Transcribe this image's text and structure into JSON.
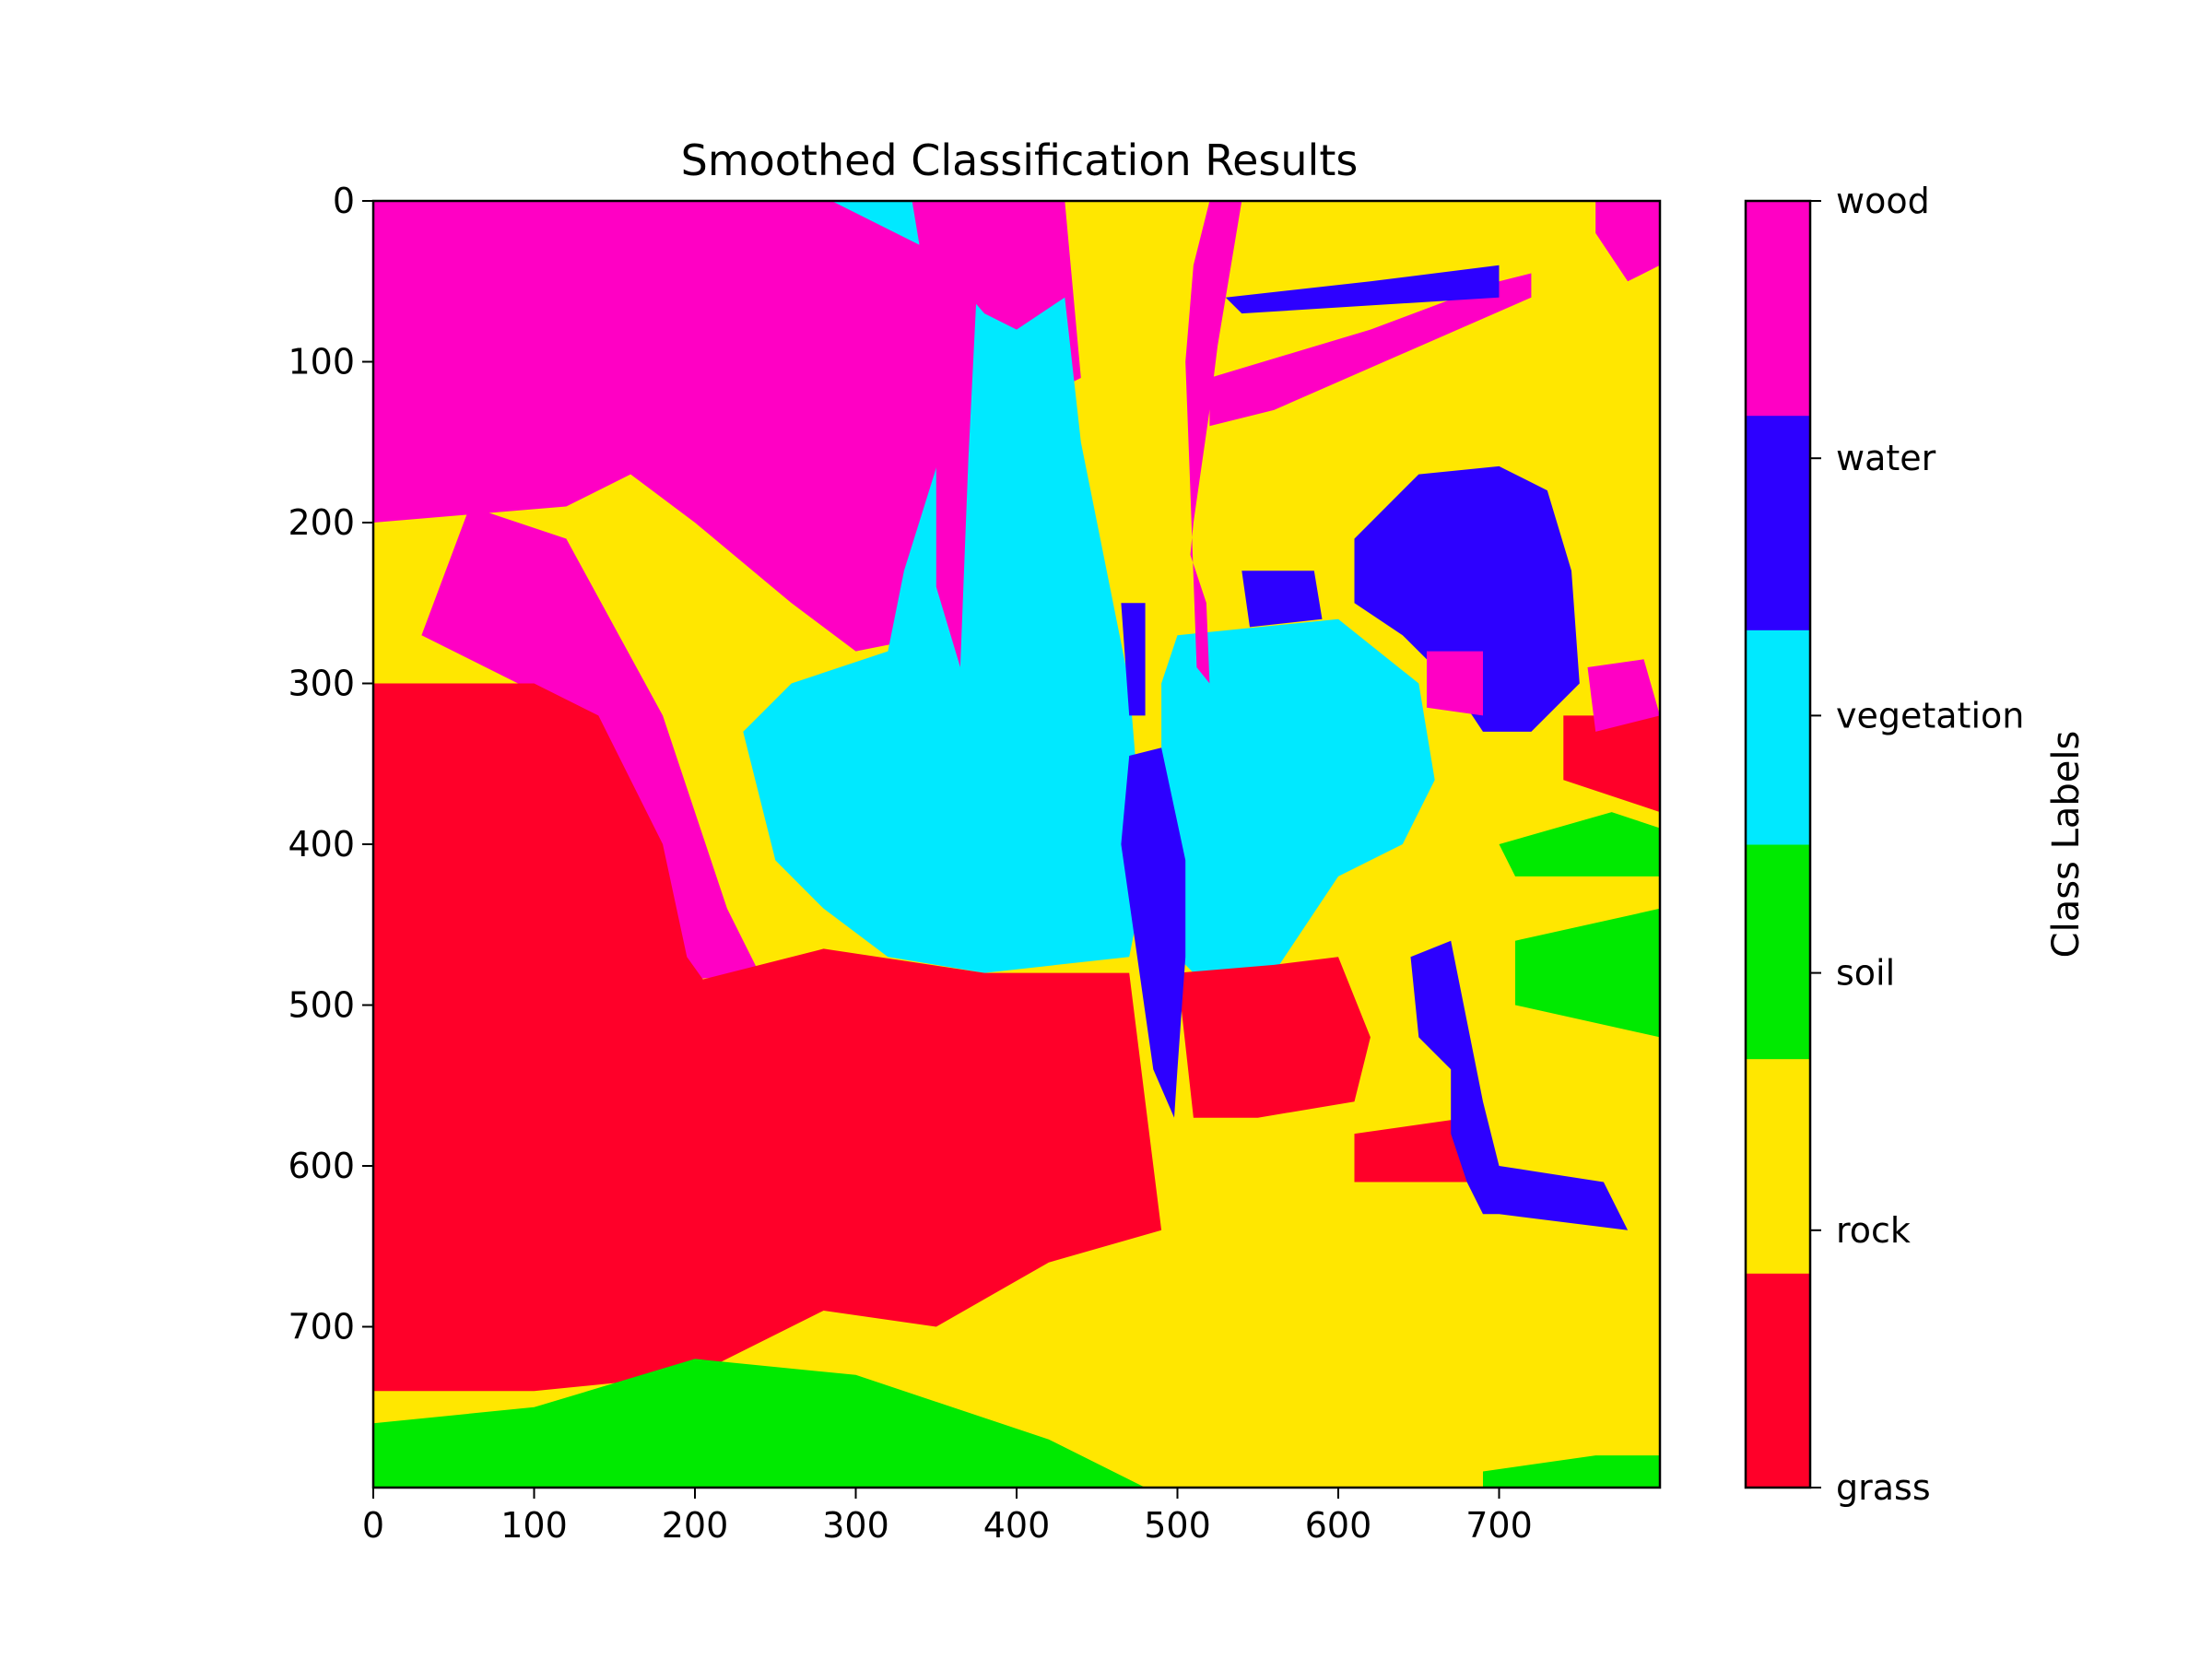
{
  "chart_data": {
    "type": "heatmap",
    "title": "Smoothed Classification Results",
    "xlabel": "",
    "ylabel": "",
    "xlim": [
      0,
      800
    ],
    "ylim": [
      800,
      0
    ],
    "x_ticks": [
      0,
      100,
      200,
      300,
      400,
      500,
      600,
      700
    ],
    "y_ticks": [
      0,
      100,
      200,
      300,
      400,
      500,
      600,
      700
    ],
    "grid": false,
    "colorbar": {
      "label": "Class Labels",
      "classes": [
        {
          "name": "grass",
          "color": "#ff0029"
        },
        {
          "name": "rock",
          "color": "#ffe700"
        },
        {
          "name": "soil",
          "color": "#00ea00"
        },
        {
          "name": "vegetation",
          "color": "#00e9ff"
        },
        {
          "name": "water",
          "color": "#2d00ff"
        },
        {
          "name": "wood",
          "color": "#ff00c4"
        }
      ]
    },
    "regions": [
      {
        "class": "wood",
        "points": [
          [
            0,
            0
          ],
          [
            430,
            0
          ],
          [
            440,
            110
          ],
          [
            400,
            130
          ],
          [
            380,
            200
          ],
          [
            350,
            270
          ],
          [
            300,
            280
          ],
          [
            260,
            250
          ],
          [
            200,
            200
          ],
          [
            160,
            170
          ],
          [
            120,
            190
          ],
          [
            0,
            200
          ]
        ]
      },
      {
        "class": "wood",
        "points": [
          [
            60,
            190
          ],
          [
            120,
            210
          ],
          [
            180,
            320
          ],
          [
            220,
            440
          ],
          [
            240,
            480
          ],
          [
            200,
            484
          ],
          [
            185,
            470
          ],
          [
            140,
            380
          ],
          [
            90,
            300
          ],
          [
            30,
            270
          ]
        ]
      },
      {
        "class": "vegetation",
        "points": [
          [
            285,
            0
          ],
          [
            350,
            0
          ],
          [
            360,
            60
          ],
          [
            355,
            150
          ],
          [
            330,
            230
          ],
          [
            320,
            280
          ],
          [
            260,
            300
          ],
          [
            230,
            330
          ],
          [
            250,
            410
          ],
          [
            280,
            440
          ],
          [
            320,
            470
          ],
          [
            380,
            480
          ],
          [
            470,
            470
          ],
          [
            480,
            420
          ],
          [
            470,
            300
          ],
          [
            450,
            200
          ],
          [
            440,
            150
          ],
          [
            430,
            60
          ],
          [
            400,
            80
          ],
          [
            380,
            70
          ],
          [
            345,
            30
          ]
        ]
      },
      {
        "class": "vegetation",
        "points": [
          [
            500,
            270
          ],
          [
            600,
            260
          ],
          [
            650,
            300
          ],
          [
            660,
            360
          ],
          [
            640,
            400
          ],
          [
            600,
            420
          ],
          [
            560,
            480
          ],
          [
            520,
            490
          ],
          [
            490,
            460
          ],
          [
            490,
            300
          ]
        ]
      },
      {
        "class": "wood",
        "points": [
          [
            335,
            0
          ],
          [
            380,
            0
          ],
          [
            375,
            60
          ],
          [
            370,
            160
          ],
          [
            365,
            290
          ],
          [
            350,
            240
          ],
          [
            350,
            150
          ],
          [
            345,
            60
          ]
        ]
      },
      {
        "class": "wood",
        "points": [
          [
            520,
            0
          ],
          [
            540,
            0
          ],
          [
            525,
            90
          ],
          [
            520,
            130
          ],
          [
            510,
            200
          ],
          [
            508,
            220
          ],
          [
            518,
            250
          ],
          [
            520,
            300
          ],
          [
            512,
            290
          ],
          [
            508,
            180
          ],
          [
            505,
            100
          ],
          [
            510,
            40
          ]
        ]
      },
      {
        "class": "wood",
        "points": [
          [
            520,
            110
          ],
          [
            620,
            80
          ],
          [
            700,
            50
          ],
          [
            720,
            45
          ],
          [
            720,
            60
          ],
          [
            640,
            95
          ],
          [
            560,
            130
          ],
          [
            520,
            140
          ]
        ]
      },
      {
        "class": "wood",
        "points": [
          [
            760,
            0
          ],
          [
            800,
            0
          ],
          [
            800,
            40
          ],
          [
            780,
            50
          ],
          [
            760,
            20
          ]
        ]
      },
      {
        "class": "grass",
        "points": [
          [
            0,
            300
          ],
          [
            100,
            300
          ],
          [
            140,
            320
          ],
          [
            180,
            400
          ],
          [
            195,
            470
          ],
          [
            205,
            484
          ],
          [
            280,
            465
          ],
          [
            380,
            480
          ],
          [
            470,
            480
          ],
          [
            480,
            560
          ],
          [
            490,
            640
          ],
          [
            420,
            660
          ],
          [
            350,
            700
          ],
          [
            280,
            690
          ],
          [
            200,
            730
          ],
          [
            100,
            740
          ],
          [
            0,
            740
          ]
        ]
      },
      {
        "class": "grass",
        "points": [
          [
            500,
            480
          ],
          [
            560,
            475
          ],
          [
            600,
            470
          ],
          [
            620,
            520
          ],
          [
            610,
            560
          ],
          [
            550,
            570
          ],
          [
            510,
            570
          ]
        ]
      },
      {
        "class": "grass",
        "points": [
          [
            610,
            580
          ],
          [
            680,
            570
          ],
          [
            690,
            610
          ],
          [
            610,
            610
          ]
        ]
      },
      {
        "class": "grass",
        "points": [
          [
            740,
            320
          ],
          [
            800,
            320
          ],
          [
            800,
            380
          ],
          [
            740,
            360
          ]
        ]
      },
      {
        "class": "water",
        "points": [
          [
            610,
            210
          ],
          [
            650,
            170
          ],
          [
            700,
            165
          ],
          [
            730,
            180
          ],
          [
            745,
            230
          ],
          [
            750,
            300
          ],
          [
            720,
            330
          ],
          [
            690,
            330
          ],
          [
            670,
            300
          ],
          [
            640,
            270
          ],
          [
            610,
            250
          ]
        ]
      },
      {
        "class": "water",
        "points": [
          [
            540,
            230
          ],
          [
            585,
            230
          ],
          [
            590,
            260
          ],
          [
            545,
            265
          ]
        ]
      },
      {
        "class": "water",
        "points": [
          [
            470,
            345
          ],
          [
            490,
            340
          ],
          [
            505,
            410
          ],
          [
            505,
            470
          ],
          [
            500,
            540
          ],
          [
            498,
            570
          ],
          [
            485,
            540
          ],
          [
            475,
            470
          ],
          [
            465,
            400
          ]
        ]
      },
      {
        "class": "water",
        "points": [
          [
            465,
            250
          ],
          [
            480,
            250
          ],
          [
            480,
            320
          ],
          [
            470,
            320
          ]
        ]
      },
      {
        "class": "water",
        "points": [
          [
            645,
            470
          ],
          [
            670,
            460
          ],
          [
            690,
            560
          ],
          [
            700,
            600
          ],
          [
            765,
            610
          ],
          [
            780,
            640
          ],
          [
            700,
            630
          ],
          [
            690,
            630
          ],
          [
            680,
            610
          ],
          [
            670,
            580
          ],
          [
            670,
            540
          ],
          [
            650,
            520
          ]
        ]
      },
      {
        "class": "water",
        "points": [
          [
            530,
            60
          ],
          [
            620,
            50
          ],
          [
            700,
            40
          ],
          [
            700,
            60
          ],
          [
            620,
            65
          ],
          [
            540,
            70
          ]
        ]
      },
      {
        "class": "wood",
        "points": [
          [
            655,
            280
          ],
          [
            690,
            280
          ],
          [
            690,
            320
          ],
          [
            655,
            315
          ]
        ]
      },
      {
        "class": "wood",
        "points": [
          [
            755,
            290
          ],
          [
            790,
            285
          ],
          [
            800,
            320
          ],
          [
            760,
            330
          ]
        ]
      },
      {
        "class": "soil",
        "points": [
          [
            710,
            460
          ],
          [
            800,
            440
          ],
          [
            800,
            520
          ],
          [
            710,
            500
          ]
        ]
      },
      {
        "class": "soil",
        "points": [
          [
            700,
            400
          ],
          [
            770,
            380
          ],
          [
            800,
            390
          ],
          [
            800,
            420
          ],
          [
            710,
            420
          ]
        ]
      },
      {
        "class": "soil",
        "points": [
          [
            0,
            760
          ],
          [
            100,
            750
          ],
          [
            200,
            720
          ],
          [
            300,
            730
          ],
          [
            420,
            770
          ],
          [
            480,
            800
          ],
          [
            0,
            800
          ]
        ]
      },
      {
        "class": "soil",
        "points": [
          [
            690,
            790
          ],
          [
            760,
            780
          ],
          [
            800,
            780
          ],
          [
            800,
            800
          ],
          [
            690,
            800
          ]
        ]
      }
    ]
  }
}
